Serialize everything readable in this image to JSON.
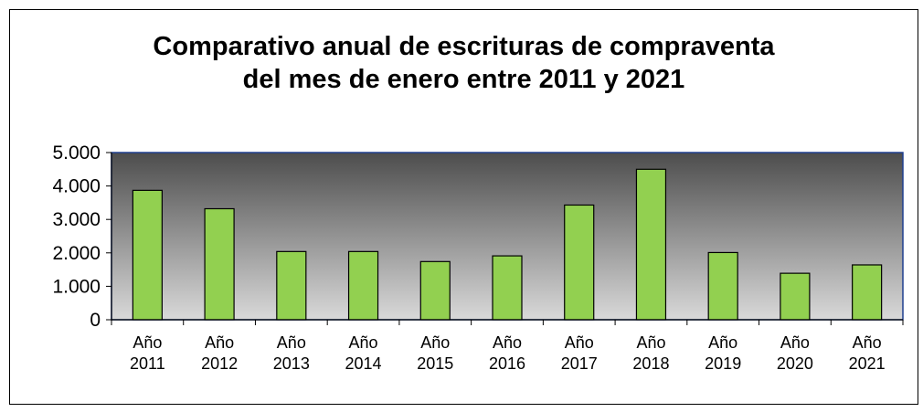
{
  "chart_data": {
    "type": "bar",
    "title_lines": [
      "Comparativo anual de escrituras de compraventa",
      "del mes de enero entre 2011 y 2021"
    ],
    "categories": [
      [
        "Año",
        "2011"
      ],
      [
        "Año",
        "2012"
      ],
      [
        "Año",
        "2013"
      ],
      [
        "Año",
        "2014"
      ],
      [
        "Año",
        "2015"
      ],
      [
        "Año",
        "2016"
      ],
      [
        "Año",
        "2017"
      ],
      [
        "Año",
        "2018"
      ],
      [
        "Año",
        "2019"
      ],
      [
        "Año",
        "2020"
      ],
      [
        "Año",
        "2021"
      ]
    ],
    "values": [
      3870,
      3320,
      2040,
      2040,
      1740,
      1910,
      3430,
      4500,
      2010,
      1390,
      1640
    ],
    "ylim": [
      0,
      5000
    ],
    "yticks": [
      0,
      1000,
      2000,
      3000,
      4000,
      5000
    ],
    "ytick_labels": [
      "0",
      "1.000",
      "2.000",
      "3.000",
      "4.000",
      "5.000"
    ],
    "legend": "none",
    "grid": false,
    "colors": {
      "bar_fill": "#92d050",
      "bar_stroke": "#000000",
      "plot_gradient_top": "#4d4d4d",
      "plot_gradient_bottom": "#d9d9d9",
      "plot_border": "#1f3f8f"
    }
  }
}
